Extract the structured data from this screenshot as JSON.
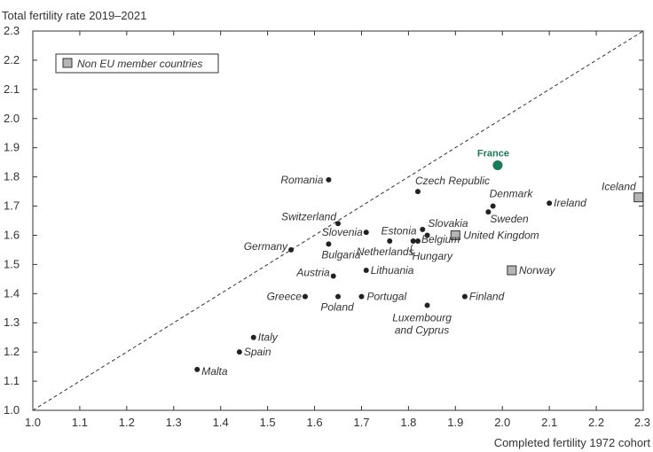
{
  "chart_data": {
    "type": "scatter",
    "title": "",
    "xlabel": "Completed fertility 1972 cohort",
    "ylabel": "Total fertility rate 2019–2021",
    "xlim": [
      1.0,
      2.3
    ],
    "ylim": [
      1.0,
      2.3
    ],
    "x_ticks": [
      "1.0",
      "1.1",
      "1.2",
      "1.3",
      "1.4",
      "1.5",
      "1.6",
      "1.7",
      "1.8",
      "1.9",
      "2.0",
      "2.1",
      "2.2",
      "2.3"
    ],
    "y_ticks": [
      "1.0",
      "1.1",
      "1.2",
      "1.3",
      "1.4",
      "1.5",
      "1.6",
      "1.7",
      "1.8",
      "1.9",
      "2.0",
      "2.1",
      "2.2",
      "2.3"
    ],
    "reference_line": "y = x (dashed diagonal)",
    "legend": {
      "label": "Non EU member countries",
      "placement": "top-left"
    },
    "colors": {
      "eu_point": "#222222",
      "non_eu_fill": "#b5b5b5",
      "highlight": "#1a7a5a"
    },
    "points": [
      {
        "name": "France",
        "x": 1.99,
        "y": 1.84,
        "group": "highlight"
      },
      {
        "name": "Romania",
        "x": 1.63,
        "y": 1.79,
        "group": "eu"
      },
      {
        "name": "Czech Republic",
        "x": 1.82,
        "y": 1.75,
        "group": "eu"
      },
      {
        "name": "Iceland",
        "x": 2.29,
        "y": 1.73,
        "group": "non_eu"
      },
      {
        "name": "Ireland",
        "x": 2.1,
        "y": 1.71,
        "group": "eu"
      },
      {
        "name": "Denmark",
        "x": 1.98,
        "y": 1.7,
        "group": "eu"
      },
      {
        "name": "Sweden",
        "x": 1.97,
        "y": 1.68,
        "group": "eu"
      },
      {
        "name": "Switzerland",
        "x": 1.65,
        "y": 1.64,
        "group": "non_eu_unmarked"
      },
      {
        "name": "Slovakia",
        "x": 1.83,
        "y": 1.62,
        "group": "eu"
      },
      {
        "name": "Slovenia",
        "x": 1.71,
        "y": 1.61,
        "group": "eu"
      },
      {
        "name": "Estonia",
        "x": 1.84,
        "y": 1.6,
        "group": "eu"
      },
      {
        "name": "United Kingdom",
        "x": 1.9,
        "y": 1.6,
        "group": "non_eu"
      },
      {
        "name": "Netherlands",
        "x": 1.76,
        "y": 1.58,
        "group": "eu"
      },
      {
        "name": "Belgium",
        "x": 1.82,
        "y": 1.58,
        "group": "eu"
      },
      {
        "name": "Hungary",
        "x": 1.81,
        "y": 1.58,
        "group": "eu"
      },
      {
        "name": "Bulgaria",
        "x": 1.63,
        "y": 1.57,
        "group": "eu"
      },
      {
        "name": "Germany",
        "x": 1.55,
        "y": 1.55,
        "group": "eu"
      },
      {
        "name": "Norway",
        "x": 2.02,
        "y": 1.48,
        "group": "non_eu"
      },
      {
        "name": "Lithuania",
        "x": 1.71,
        "y": 1.48,
        "group": "eu"
      },
      {
        "name": "Austria",
        "x": 1.64,
        "y": 1.46,
        "group": "eu"
      },
      {
        "name": "Greece",
        "x": 1.58,
        "y": 1.39,
        "group": "eu"
      },
      {
        "name": "Poland",
        "x": 1.65,
        "y": 1.39,
        "group": "eu"
      },
      {
        "name": "Portugal",
        "x": 1.7,
        "y": 1.39,
        "group": "eu"
      },
      {
        "name": "Finland",
        "x": 1.92,
        "y": 1.39,
        "group": "eu"
      },
      {
        "name": "Luxembourg and Cyprus",
        "x": 1.84,
        "y": 1.36,
        "group": "eu"
      },
      {
        "name": "Italy",
        "x": 1.47,
        "y": 1.25,
        "group": "eu"
      },
      {
        "name": "Spain",
        "x": 1.44,
        "y": 1.2,
        "group": "eu"
      },
      {
        "name": "Malta",
        "x": 1.35,
        "y": 1.14,
        "group": "eu"
      }
    ]
  }
}
